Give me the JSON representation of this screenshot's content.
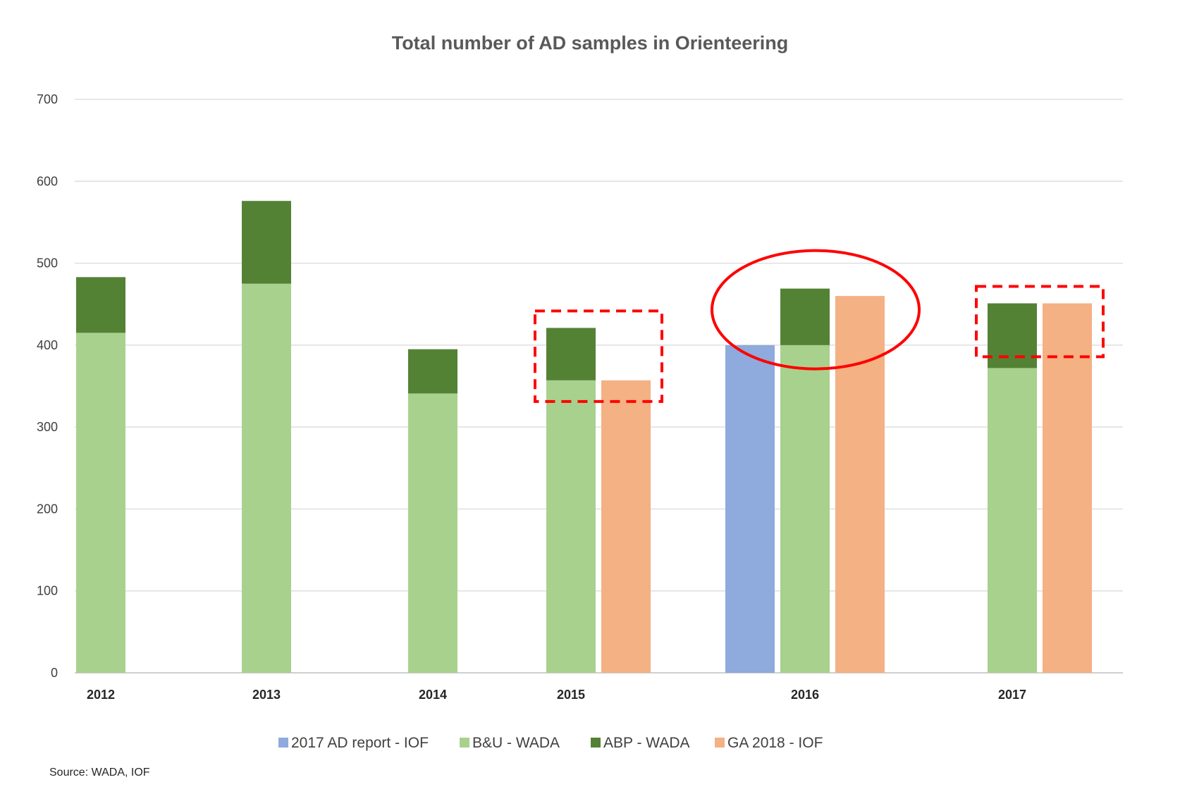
{
  "chart_data": {
    "type": "bar",
    "title": "Total number of AD samples in Orienteering",
    "source": "Source: WADA, IOF",
    "ylim": [
      0,
      700
    ],
    "yticks": [
      0,
      100,
      200,
      300,
      400,
      500,
      600,
      700
    ],
    "grid": true,
    "legend_position": "bottom",
    "categories": [
      "2012",
      "2013",
      "2014",
      "2015",
      "2016",
      "2017"
    ],
    "series": [
      {
        "name": "2017 AD report - IOF",
        "color": "#8faadc",
        "values": [
          null,
          null,
          null,
          null,
          400,
          null
        ]
      },
      {
        "name": "B&U - WADA",
        "color": "#a9d18e",
        "stack": "wada",
        "values": [
          415,
          475,
          341,
          357,
          400,
          372
        ]
      },
      {
        "name": "ABP - WADA",
        "color": "#548235",
        "stack": "wada",
        "values": [
          68,
          101,
          54,
          64,
          69,
          79
        ]
      },
      {
        "name": "GA 2018 - IOF",
        "color": "#f4b183",
        "values": [
          null,
          null,
          null,
          357,
          460,
          451
        ]
      }
    ],
    "annotations": [
      {
        "type": "dashed-rectangle",
        "category": "2015",
        "color": "#ff0000"
      },
      {
        "type": "ellipse",
        "category": "2016",
        "color": "#ff0000"
      },
      {
        "type": "dashed-rectangle",
        "category": "2017",
        "color": "#ff0000"
      }
    ]
  }
}
